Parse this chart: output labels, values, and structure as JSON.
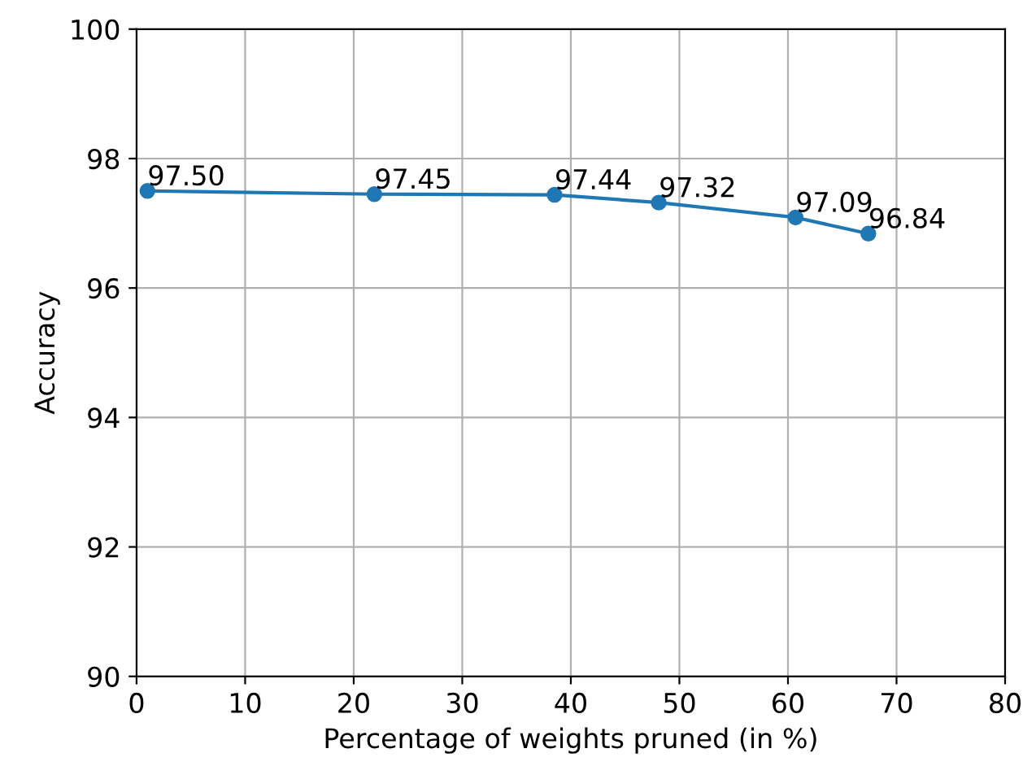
{
  "chart_data": {
    "type": "line",
    "xlabel": "Percentage of weights pruned (in %)",
    "ylabel": "Accuracy",
    "x": [
      1.0,
      21.9,
      38.5,
      48.1,
      60.7,
      67.4
    ],
    "series": [
      {
        "color": "#1f77b4",
        "values": [
          97.5,
          97.45,
          97.44,
          97.32,
          97.09,
          96.84
        ]
      }
    ],
    "value_labels": [
      "97.50",
      "97.45",
      "97.44",
      "97.32",
      "97.09",
      "96.84"
    ],
    "xlim": [
      0,
      80
    ],
    "xticks": [
      0,
      10,
      20,
      30,
      40,
      50,
      60,
      70,
      80
    ],
    "ylim": [
      90,
      100
    ],
    "yticks": [
      90,
      92,
      94,
      96,
      98,
      100
    ],
    "grid": true,
    "marker": "circle",
    "line_style": "solid"
  }
}
